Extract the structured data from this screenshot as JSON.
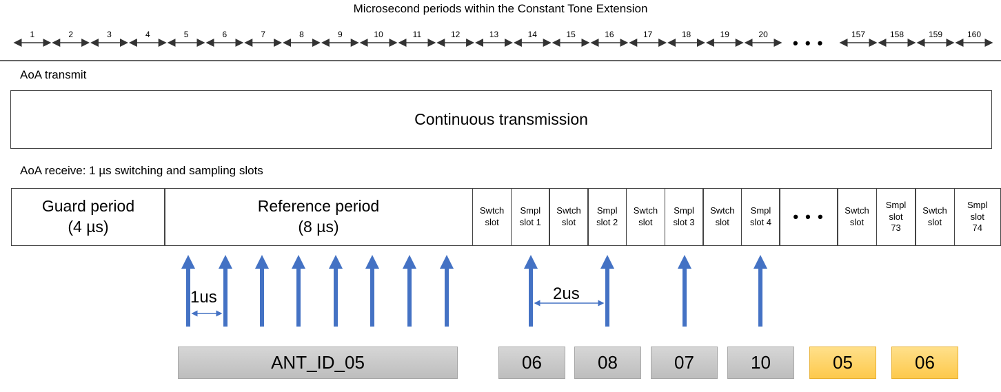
{
  "title": "Microsecond periods within the Constant Tone Extension",
  "timeline": {
    "labels": [
      "1",
      "2",
      "3",
      "4",
      "5",
      "6",
      "7",
      "8",
      "9",
      "10",
      "11",
      "12",
      "13",
      "14",
      "15",
      "16",
      "17",
      "18",
      "19",
      "20"
    ],
    "ellipsis": "• • •",
    "end_labels": [
      "157",
      "158",
      "159",
      "160"
    ]
  },
  "transmit": {
    "label": "AoA transmit",
    "box_text": "Continuous transmission"
  },
  "receive": {
    "label": "AoA receive: 1 µs switching and sampling slots",
    "guard_line1": "Guard period",
    "guard_line2": "(4 µs)",
    "reference_line1": "Reference period",
    "reference_line2": "(8 µs)",
    "slots": [
      {
        "l1": "Swtch",
        "l2": "slot"
      },
      {
        "l1": "Smpl",
        "l2": "slot 1"
      },
      {
        "l1": "Swtch",
        "l2": "slot"
      },
      {
        "l1": "Smpl",
        "l2": "slot 2"
      },
      {
        "l1": "Swtch",
        "l2": "slot"
      },
      {
        "l1": "Smpl",
        "l2": "slot 3"
      },
      {
        "l1": "Swtch",
        "l2": "slot"
      },
      {
        "l1": "Smpl",
        "l2": "slot 4"
      }
    ],
    "ellipsis": "• • •",
    "end_slots": [
      {
        "l1": "Swtch",
        "l2": "slot",
        "l3": ""
      },
      {
        "l1": "Smpl",
        "l2": "slot",
        "l3": "73"
      },
      {
        "l1": "Swtch",
        "l2": "slot",
        "l3": ""
      },
      {
        "l1": "Smpl",
        "l2": "slot",
        "l3": "74"
      }
    ]
  },
  "annotations": {
    "one_us": "1us",
    "two_us": "2us"
  },
  "antennas": [
    {
      "label": "ANT_ID_05",
      "color": "gray"
    },
    {
      "label": "06",
      "color": "gray"
    },
    {
      "label": "08",
      "color": "gray"
    },
    {
      "label": "07",
      "color": "gray"
    },
    {
      "label": "10",
      "color": "gray"
    },
    {
      "label": "05",
      "color": "yellow"
    },
    {
      "label": "06",
      "color": "yellow"
    }
  ],
  "colors": {
    "arrow": "#4472c4",
    "gray_box": "#c8c8c8",
    "yellow_box": "#fdd36a"
  }
}
